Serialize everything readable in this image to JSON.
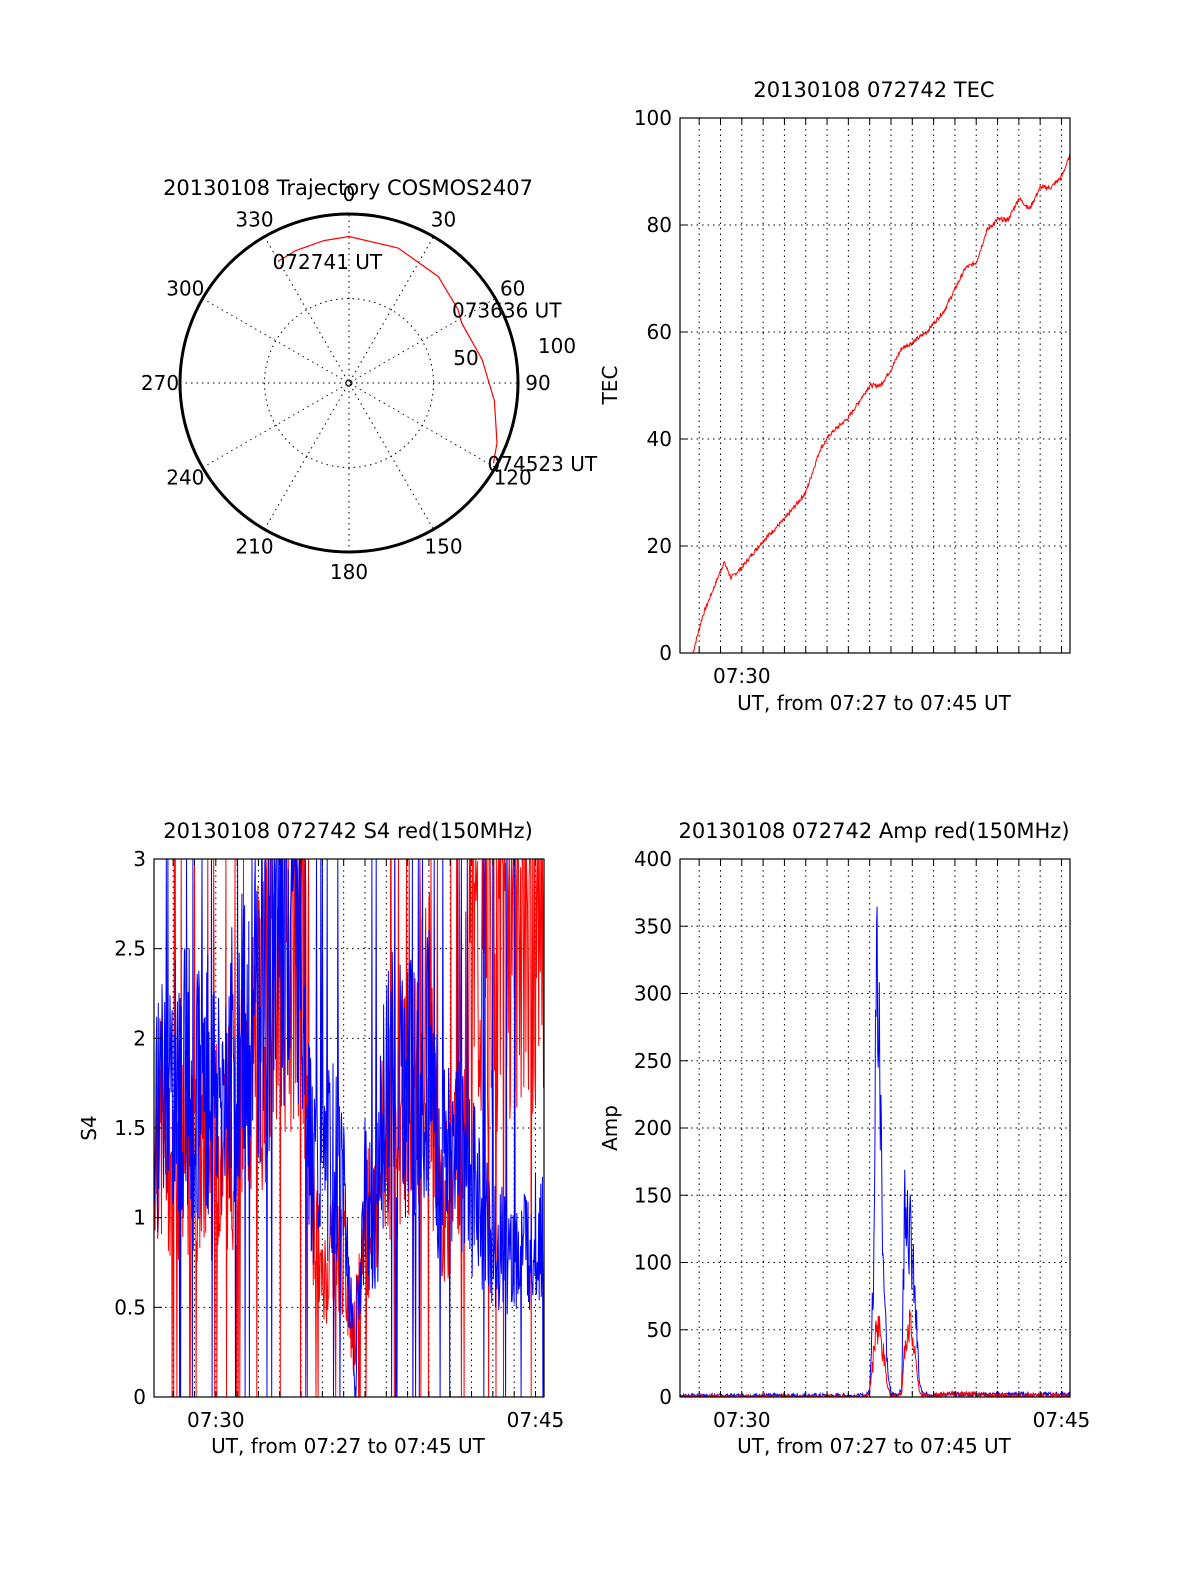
{
  "chart_data": [
    {
      "type": "polar",
      "title": "20130108 Trajectory COSMOS2407",
      "azimuth_labels": [
        "0",
        "30",
        "60",
        "90",
        "120",
        "150",
        "180",
        "210",
        "240",
        "270",
        "300",
        "330"
      ],
      "radial_labels": [
        "50",
        "100"
      ],
      "trajectory": {
        "color": "#ff0000",
        "points": [
          {
            "az": 330,
            "el": 15
          },
          {
            "az": 338,
            "el": 14
          },
          {
            "az": 350,
            "el": 13
          },
          {
            "az": 0,
            "el": 12
          },
          {
            "az": 20,
            "el": 13.5
          },
          {
            "az": 40,
            "el": 16
          },
          {
            "az": 56,
            "el": 20
          },
          {
            "az": 62,
            "el": 22
          },
          {
            "az": 80,
            "el": 18
          },
          {
            "az": 97,
            "el": 12
          },
          {
            "az": 112,
            "el": 5
          },
          {
            "az": 119,
            "el": 2
          }
        ]
      },
      "annotations": [
        {
          "text": "072741 UT",
          "az": 330,
          "el": 15
        },
        {
          "text": "073636 UT",
          "az": 56,
          "el": 20
        },
        {
          "text": "074523 UT",
          "az": 119,
          "el": 2
        }
      ]
    },
    {
      "type": "line",
      "title": "20130108 072742 TEC",
      "xlabel": "UT, from 07:27 to 07:45 UT",
      "ylabel": "TEC",
      "xlim": [
        "07:27:06",
        "07:45:24"
      ],
      "ylim": [
        0,
        100
      ],
      "yticks": [
        0,
        20,
        40,
        60,
        80,
        100
      ],
      "xtick_labels": [
        {
          "label": "07:30",
          "at": "07:30"
        }
      ],
      "grid": true,
      "series": [
        {
          "color": "#ff0000",
          "x": [
            "07:27:42",
            "07:28:10",
            "07:28:40",
            "07:29:10",
            "07:29:30",
            "07:30:00",
            "07:31:00",
            "07:32:00",
            "07:33:00",
            "07:33:40",
            "07:34:10",
            "07:35:00",
            "07:35:40",
            "07:36:00",
            "07:36:30",
            "07:37:00",
            "07:37:30",
            "07:38:00",
            "07:38:40",
            "07:39:30",
            "07:40:00",
            "07:40:30",
            "07:41:00",
            "07:41:30",
            "07:42:00",
            "07:42:30",
            "07:43:00",
            "07:43:30",
            "07:44:00",
            "07:44:30",
            "07:45:00",
            "07:45:24"
          ],
          "y": [
            0,
            7,
            12,
            17,
            14,
            16,
            21,
            25,
            30,
            38,
            41,
            44,
            48,
            50,
            50,
            53,
            57,
            58,
            60,
            64,
            68,
            72,
            73,
            79,
            81,
            81,
            85,
            83,
            87,
            87,
            89,
            93
          ]
        }
      ]
    },
    {
      "type": "line",
      "title": "20130108 072742 S4 red(150MHz)",
      "xlabel": "UT, from 07:27 to 07:45 UT",
      "ylabel": "S4",
      "xlim": [
        "07:27:06",
        "07:45:24"
      ],
      "ylim": [
        0,
        3
      ],
      "yticks": [
        "0",
        "0.5",
        "1",
        "1.5",
        "2",
        "2.5",
        "3"
      ],
      "xtick_labels": [
        {
          "label": "07:30",
          "at": "07:30"
        },
        {
          "label": "07:45",
          "at": "07:45"
        }
      ],
      "grid": true,
      "series": [
        {
          "color": "#ff0000",
          "style": "noisy",
          "x": [
            "07:27:06",
            "07:28:00",
            "07:29:00",
            "07:30:00",
            "07:31:00",
            "07:32:00",
            "07:33:00",
            "07:34:00",
            "07:34:30",
            "07:35:00",
            "07:35:30",
            "07:36:00",
            "07:36:30",
            "07:37:00",
            "07:37:30",
            "07:38:00",
            "07:39:00",
            "07:40:00",
            "07:40:30",
            "07:41:00",
            "07:41:30",
            "07:42:00",
            "07:43:00",
            "07:44:00",
            "07:45:24"
          ],
          "y": [
            1.5,
            1.4,
            1.3,
            1.4,
            1.5,
            2.0,
            2.5,
            2.8,
            1.2,
            0.6,
            0.9,
            0.8,
            0.3,
            1.0,
            1.0,
            1.5,
            1.7,
            2.0,
            1.2,
            1.0,
            1.8,
            2.2,
            2.6,
            2.8,
            2.9
          ]
        },
        {
          "color": "#0000ff",
          "style": "noisy",
          "x": [
            "07:27:06",
            "07:28:00",
            "07:29:00",
            "07:30:00",
            "07:31:00",
            "07:32:00",
            "07:33:00",
            "07:34:00",
            "07:34:30",
            "07:35:00",
            "07:35:30",
            "07:36:00",
            "07:36:30",
            "07:37:00",
            "07:37:30",
            "07:38:00",
            "07:39:00",
            "07:40:00",
            "07:40:30",
            "07:41:00",
            "07:41:30",
            "07:42:00",
            "07:43:00",
            "07:44:00",
            "07:45:24"
          ],
          "y": [
            1.6,
            1.7,
            1.8,
            1.7,
            1.9,
            2.2,
            2.6,
            2.8,
            1.3,
            1.2,
            1.3,
            1.2,
            0.2,
            1.1,
            1.0,
            1.7,
            1.8,
            1.9,
            1.3,
            1.4,
            1.5,
            1.2,
            0.9,
            0.8,
            0.9
          ]
        }
      ]
    },
    {
      "type": "line",
      "title": "20130108 072742 Amp red(150MHz)",
      "xlabel": "UT, from 07:27 to 07:45 UT",
      "ylabel": "Amp",
      "xlim": [
        "07:27:06",
        "07:45:24"
      ],
      "ylim": [
        0,
        400
      ],
      "yticks": [
        0,
        50,
        100,
        150,
        200,
        250,
        300,
        350,
        400
      ],
      "xtick_labels": [
        {
          "label": "07:30",
          "at": "07:30"
        },
        {
          "label": "07:45",
          "at": "07:45"
        }
      ],
      "grid": true,
      "series": [
        {
          "color": "#0000ff",
          "x": [
            "07:27:06",
            "07:35:50",
            "07:36:00",
            "07:36:10",
            "07:36:20",
            "07:36:30",
            "07:36:40",
            "07:36:50",
            "07:37:00",
            "07:37:20",
            "07:37:30",
            "07:37:40",
            "07:37:50",
            "07:38:00",
            "07:38:10",
            "07:38:20",
            "07:38:30",
            "07:39:00",
            "07:40:00",
            "07:42:00",
            "07:45:24"
          ],
          "y": [
            1,
            1,
            5,
            80,
            330,
            220,
            90,
            20,
            2,
            2,
            5,
            170,
            130,
            100,
            60,
            10,
            2,
            2,
            2,
            2,
            2
          ]
        },
        {
          "color": "#ff0000",
          "x": [
            "07:27:06",
            "07:35:50",
            "07:36:00",
            "07:36:10",
            "07:36:20",
            "07:36:30",
            "07:36:40",
            "07:36:50",
            "07:37:00",
            "07:37:20",
            "07:37:30",
            "07:37:40",
            "07:37:50",
            "07:38:00",
            "07:38:10",
            "07:38:20",
            "07:38:30",
            "07:39:00",
            "07:40:00",
            "07:42:00",
            "07:45:24"
          ],
          "y": [
            0,
            0,
            3,
            30,
            55,
            50,
            30,
            8,
            1,
            1,
            3,
            40,
            55,
            45,
            25,
            4,
            1,
            1,
            3,
            1,
            1
          ]
        }
      ]
    }
  ]
}
